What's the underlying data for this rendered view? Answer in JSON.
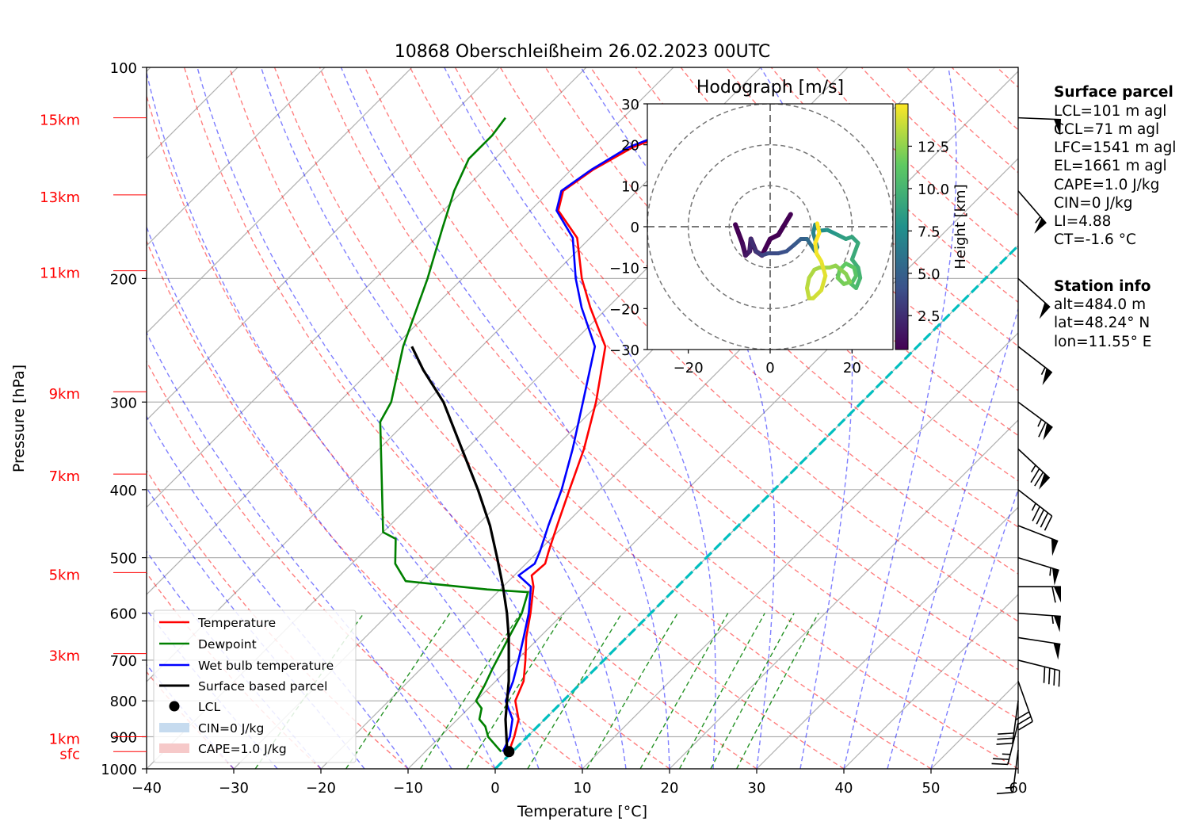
{
  "chart_data": {
    "type": "line",
    "title": "10868 Oberschleißheim 26.02.2023 00UTC",
    "xlabel": "Temperature [°C]",
    "ylabel": "Pressure [hPa]",
    "xlim": [
      -40,
      60
    ],
    "ylim": [
      1000,
      100
    ],
    "y_scale": "log",
    "grid": true,
    "x_ticks": [
      "−40",
      "−30",
      "−20",
      "−10",
      "0",
      "10",
      "20",
      "30",
      "40",
      "50",
      "60"
    ],
    "y_ticks": [
      {
        "value": 100,
        "label": "100"
      },
      {
        "value": 200,
        "label": "200"
      },
      {
        "value": 300,
        "label": "300"
      },
      {
        "value": 400,
        "label": "400"
      },
      {
        "value": 500,
        "label": "500"
      },
      {
        "value": 600,
        "label": "600"
      },
      {
        "value": 700,
        "label": "700"
      },
      {
        "value": 800,
        "label": "800"
      },
      {
        "value": 900,
        "label": "900"
      },
      {
        "value": 1000,
        "label": "1000"
      }
    ],
    "height_labels": [
      {
        "label": "15km",
        "p": 118
      },
      {
        "label": "13km",
        "p": 152
      },
      {
        "label": "11km",
        "p": 195
      },
      {
        "label": "9km",
        "p": 290
      },
      {
        "label": "7km",
        "p": 380
      },
      {
        "label": "5km",
        "p": 525
      },
      {
        "label": "3km",
        "p": 685
      },
      {
        "label": "1km",
        "p": 900
      },
      {
        "label": "sfc",
        "p": 945
      }
    ],
    "series": [
      {
        "name": "Temperature",
        "color": "#ff0000",
        "points": [
          [
            -0.4,
            945
          ],
          [
            -1.5,
            900
          ],
          [
            -3,
            850
          ],
          [
            -5.5,
            800
          ],
          [
            -6.8,
            750
          ],
          [
            -9,
            700
          ],
          [
            -11.5,
            650
          ],
          [
            -13.8,
            600
          ],
          [
            -16.5,
            550
          ],
          [
            -18,
            530
          ],
          [
            -17.8,
            510
          ],
          [
            -18.8,
            490
          ],
          [
            -20.8,
            450
          ],
          [
            -23.5,
            400
          ],
          [
            -26.5,
            350
          ],
          [
            -30.5,
            300
          ],
          [
            -35.8,
            250
          ],
          [
            -42,
            220
          ],
          [
            -46.3,
            200
          ],
          [
            -51.5,
            175
          ],
          [
            -56.8,
            160
          ],
          [
            -58.5,
            150
          ],
          [
            -57.5,
            140
          ],
          [
            -55.5,
            130
          ],
          [
            -52,
            122
          ],
          [
            -51.5,
            117
          ]
        ]
      },
      {
        "name": "Dewpoint",
        "color": "#008000",
        "points": [
          [
            -1.3,
            945
          ],
          [
            -4.5,
            900
          ],
          [
            -6,
            870
          ],
          [
            -7.5,
            850
          ],
          [
            -8.5,
            820
          ],
          [
            -10,
            800
          ],
          [
            -10.8,
            760
          ],
          [
            -11.8,
            720
          ],
          [
            -13.5,
            650
          ],
          [
            -14.8,
            600
          ],
          [
            -16.5,
            560
          ],
          [
            -21.5,
            555
          ],
          [
            -31.8,
            540
          ],
          [
            -35,
            510
          ],
          [
            -37.8,
            470
          ],
          [
            -40,
            460
          ],
          [
            -53,
            320
          ],
          [
            -54,
            300
          ],
          [
            -59,
            250
          ],
          [
            -64,
            200
          ],
          [
            -68,
            170
          ],
          [
            -71,
            150
          ],
          [
            -73,
            135
          ],
          [
            -73,
            125
          ],
          [
            -73.5,
            118
          ]
        ]
      },
      {
        "name": "Wet bulb temperature",
        "color": "#0000ff",
        "points": [
          [
            -1.1,
            945
          ],
          [
            -2,
            900
          ],
          [
            -3.7,
            850
          ],
          [
            -6.6,
            800
          ],
          [
            -8,
            750
          ],
          [
            -9.8,
            700
          ],
          [
            -11.8,
            650
          ],
          [
            -14,
            600
          ],
          [
            -16.8,
            550
          ],
          [
            -19.5,
            530
          ],
          [
            -19,
            510
          ],
          [
            -19.8,
            490
          ],
          [
            -21.8,
            450
          ],
          [
            -24.4,
            400
          ],
          [
            -27.8,
            350
          ],
          [
            -32,
            300
          ],
          [
            -37,
            250
          ],
          [
            -43,
            220
          ],
          [
            -47,
            200
          ],
          [
            -52,
            175
          ],
          [
            -57,
            160
          ],
          [
            -58.7,
            150
          ],
          [
            -57.7,
            140
          ],
          [
            -56,
            130
          ],
          [
            -52.5,
            122
          ],
          [
            -52,
            117
          ]
        ]
      },
      {
        "name": "Surface based parcel",
        "color": "#000000",
        "points": [
          [
            -0.4,
            945
          ],
          [
            -0.8,
            940
          ],
          [
            -4.5,
            850
          ],
          [
            -8.5,
            750
          ],
          [
            -13.5,
            650
          ],
          [
            -16.5,
            600
          ],
          [
            -20,
            550
          ],
          [
            -24,
            500
          ],
          [
            -28.5,
            450
          ],
          [
            -34,
            400
          ],
          [
            -40.5,
            350
          ],
          [
            -48,
            300
          ],
          [
            -54,
            270
          ],
          [
            -58,
            250
          ]
        ]
      }
    ],
    "isotherm_highlight": {
      "name": "0°C isotherm",
      "color": "#00bfbf",
      "t": 0
    },
    "lcl": {
      "t": -0.4,
      "p": 945,
      "color": "#000000"
    },
    "winds": [
      {
        "p": 940,
        "u": 1,
        "v": 8
      },
      {
        "p": 860,
        "u": 3,
        "v": 12
      },
      {
        "p": 800,
        "u": 2,
        "v": 15
      },
      {
        "p": 750,
        "u": -5,
        "v": 14
      },
      {
        "p": 700,
        "u": -20,
        "v": 5
      },
      {
        "p": 650,
        "u": -26,
        "v": 4
      },
      {
        "p": 600,
        "u": -28,
        "v": 2
      },
      {
        "p": 550,
        "u": -30,
        "v": 0
      },
      {
        "p": 500,
        "u": -26,
        "v": 8
      },
      {
        "p": 450,
        "u": -23,
        "v": 9
      },
      {
        "p": 400,
        "u": -18,
        "v": 14
      },
      {
        "p": 350,
        "u": -28,
        "v": 26
      },
      {
        "p": 300,
        "u": -27,
        "v": 20
      },
      {
        "p": 250,
        "u": -22,
        "v": 17
      },
      {
        "p": 200,
        "u": -20,
        "v": 18
      },
      {
        "p": 150,
        "u": -19,
        "v": 22
      },
      {
        "p": 118,
        "u": -25,
        "v": 1
      }
    ],
    "legend": {
      "placement": "lower-left",
      "entries": [
        {
          "label": "Temperature",
          "kind": "line",
          "color": "#ff0000"
        },
        {
          "label": "Dewpoint",
          "kind": "line",
          "color": "#008000"
        },
        {
          "label": "Wet bulb temperature",
          "kind": "line",
          "color": "#0000ff"
        },
        {
          "label": "Surface based parcel",
          "kind": "line",
          "color": "#000000"
        },
        {
          "label": "LCL",
          "kind": "dot",
          "color": "#000000"
        },
        {
          "label": "CIN=0 J/kg",
          "kind": "patch",
          "color": "#c6dbef"
        },
        {
          "label": "CAPE=1.0 J/kg",
          "kind": "patch",
          "color": "#f6c9c9"
        }
      ]
    },
    "hodograph": {
      "title": "Hodograph [m/s]",
      "xlim": [
        -30,
        30
      ],
      "ylim": [
        -30,
        30
      ],
      "x_ticks": [
        "−20",
        "0",
        "20"
      ],
      "y_ticks": [
        "30",
        "20",
        "10",
        "0",
        "−10",
        "−20",
        "−30"
      ],
      "rings": [
        10,
        20,
        30
      ],
      "colorbar": {
        "label": "Height [km]",
        "ticks": [
          "12.5",
          "10.0",
          "7.5",
          "5.0",
          "2.5"
        ],
        "range": [
          0.5,
          15
        ]
      },
      "points": [
        [
          -8.5,
          0.5,
          0.5
        ],
        [
          -6.8,
          -4,
          1
        ],
        [
          -6,
          -7,
          1.5
        ],
        [
          -5,
          -6,
          2
        ],
        [
          -4.7,
          -3,
          2.5
        ],
        [
          -3.5,
          -6,
          3
        ],
        [
          -2,
          -7,
          3.5
        ],
        [
          -0.5,
          -6.5,
          3.8
        ],
        [
          2,
          -6.5,
          4
        ],
        [
          4,
          -6,
          4.2
        ],
        [
          5.8,
          -4.5,
          4.5
        ],
        [
          7.5,
          -3,
          5
        ],
        [
          9,
          -3,
          5.5
        ],
        [
          10,
          -4.5,
          6
        ],
        [
          11,
          -6,
          6.5
        ],
        [
          11.5,
          -5,
          6.8
        ],
        [
          10.5,
          -1.5,
          7
        ],
        [
          11,
          0.5,
          7.3
        ],
        [
          12,
          -1,
          7.6
        ],
        [
          14,
          -0.8,
          8
        ],
        [
          16.5,
          -2,
          8.5
        ],
        [
          18.5,
          -3,
          8.8
        ],
        [
          20,
          -2.5,
          9
        ],
        [
          21.5,
          -4,
          9.3
        ],
        [
          20,
          -8,
          9.6
        ],
        [
          21.5,
          -10,
          9.9
        ],
        [
          22,
          -12.5,
          10.2
        ],
        [
          21,
          -15,
          10.5
        ],
        [
          19.8,
          -14,
          10.8
        ],
        [
          21,
          -12,
          11
        ],
        [
          20.5,
          -10,
          11.2
        ],
        [
          18.5,
          -9,
          11.4
        ],
        [
          17,
          -10.5,
          11.6
        ],
        [
          16.5,
          -12.5,
          11.8
        ],
        [
          18,
          -14,
          12
        ],
        [
          19.5,
          -13.5,
          12.2
        ],
        [
          18.5,
          -11.5,
          12.4
        ],
        [
          16,
          -9.5,
          12.6
        ],
        [
          14.5,
          -10,
          12.8
        ],
        [
          12,
          -10,
          13
        ],
        [
          10.8,
          -10.5,
          13.2
        ],
        [
          9.5,
          -12.5,
          13.4
        ],
        [
          9,
          -15,
          13.6
        ],
        [
          9.5,
          -17.5,
          13.8
        ],
        [
          10.5,
          -17.5,
          14
        ],
        [
          12.5,
          -15.5,
          14.2
        ],
        [
          13.5,
          -12,
          14.4
        ],
        [
          12.5,
          -8.5,
          14.6
        ],
        [
          11.3,
          -6.5,
          14.8
        ],
        [
          11,
          -4,
          15
        ],
        [
          12,
          -1.5,
          15
        ],
        [
          11.5,
          0.8,
          15
        ]
      ],
      "thick_segments": [
        [
          -8.5,
          0.5
        ],
        [
          -6.8,
          -4
        ],
        [
          -6,
          -7
        ],
        [
          -5,
          -6
        ],
        [
          -4.7,
          -3
        ],
        [
          -3.5,
          -6
        ],
        [
          -2,
          -7
        ],
        [
          0,
          -3
        ],
        [
          2,
          -2
        ],
        [
          5,
          3
        ]
      ]
    },
    "annotations": [
      {
        "text": "Surface parcel",
        "bold": true
      },
      {
        "text": "LCL=101 m agl"
      },
      {
        "text": "CCL=71 m agl"
      },
      {
        "text": "LFC=1541 m agl"
      },
      {
        "text": "EL=1661 m agl"
      },
      {
        "text": "CAPE=1.0 J/kg"
      },
      {
        "text": "CIN=0 J/kg"
      },
      {
        "text": "LI=4.88"
      },
      {
        "text": "CT=-1.6 °C"
      },
      {
        "text": "Station info",
        "bold": true
      },
      {
        "text": "alt=484.0 m"
      },
      {
        "text": "lat=48.24° N"
      },
      {
        "text": "lon=11.55° E"
      }
    ]
  }
}
